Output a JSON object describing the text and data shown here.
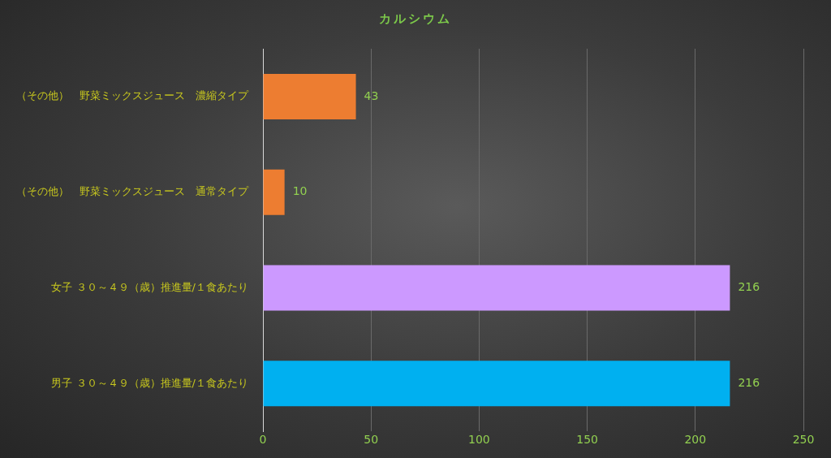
{
  "chart_data": {
    "type": "bar",
    "orientation": "horizontal",
    "title": "カルシウム",
    "categories": [
      "（その他）　野菜ミックスジュース　濃縮タイプ",
      "（その他）　野菜ミックスジュース　通常タイプ",
      "女子 ３０～４９（歳）推進量/１食あたり",
      "男子 ３０～４９（歳）推進量/１食あたり"
    ],
    "values": [
      43,
      10,
      216,
      216
    ],
    "colors": [
      "#ed7d31",
      "#ed7d31",
      "#cc99ff",
      "#00b0f0"
    ],
    "xlim": [
      0,
      250
    ],
    "xticks": [
      0,
      50,
      100,
      150,
      200,
      250
    ],
    "grid": "x",
    "data_labels": true,
    "legend": false
  }
}
